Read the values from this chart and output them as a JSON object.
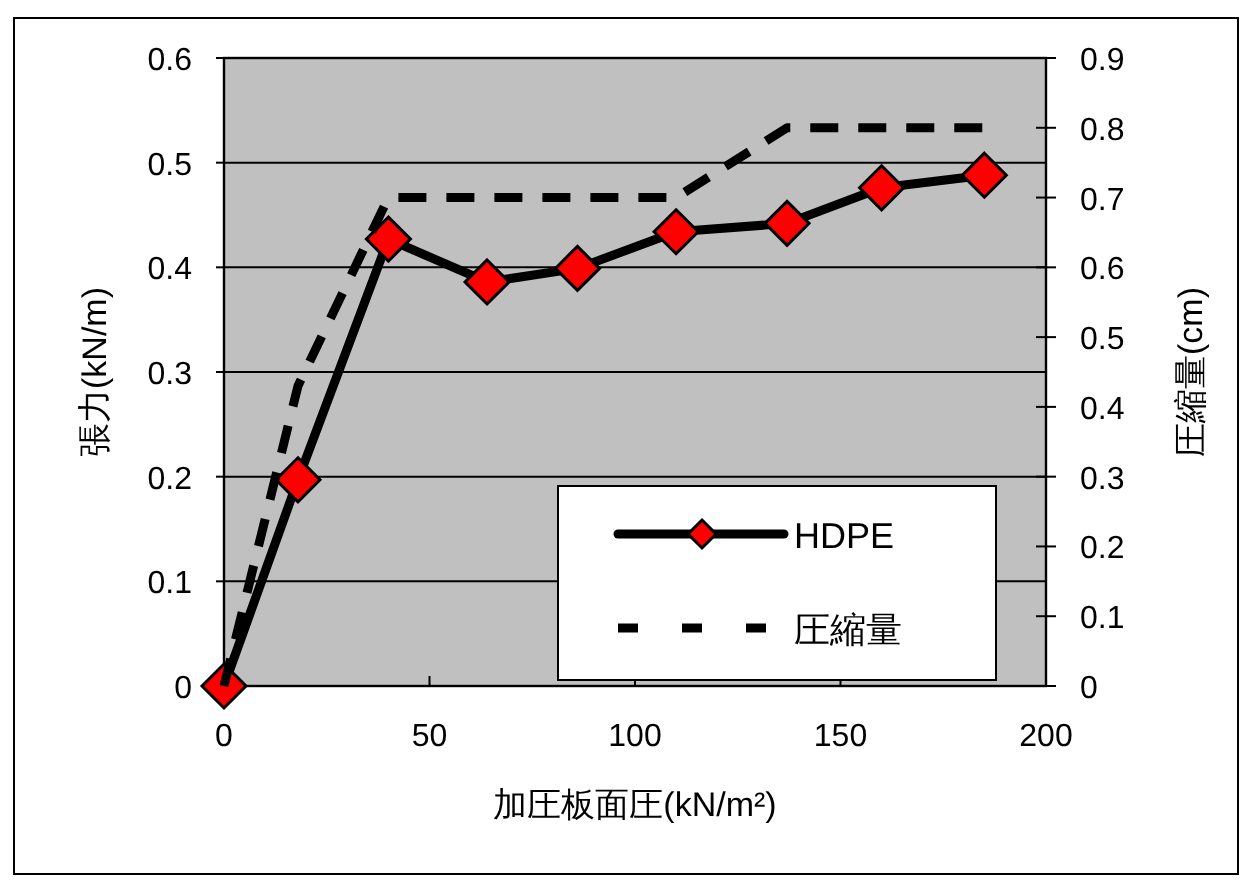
{
  "chart_data": {
    "type": "line",
    "xlabel": "加圧板面圧(kN/m²)",
    "ylabel": "張力(kN/m)",
    "y2label": "圧縮量(cm)",
    "x": [
      0,
      18,
      40,
      64,
      86,
      110,
      137,
      160,
      185
    ],
    "series": [
      {
        "name": "HDPE",
        "color": "#000000",
        "values": [
          0,
          0.197,
          0.427,
          0.386,
          0.399,
          0.434,
          0.442,
          0.476,
          0.488
        ],
        "marker": "diamond",
        "colors": [
          "#ff0000",
          "#ff0000",
          "#ff0000",
          "#ff0000",
          "#ff0000",
          "#ff0000",
          "#ff0000",
          "#ff0000",
          "#ff0000"
        ],
        "line_style": "solid"
      },
      {
        "name": "圧縮量",
        "color": "#000000",
        "axis": "y2",
        "values": [
          0,
          0.43,
          0.7,
          0.7,
          0.7,
          0.7,
          0.8,
          0.8,
          0.8
        ],
        "marker": "none",
        "line_style": "dashed"
      }
    ],
    "xlim": [
      0,
      200
    ],
    "xticks": [
      0,
      50,
      100,
      150,
      200
    ],
    "ylim": [
      0,
      0.6
    ],
    "yticks": [
      0,
      0.1,
      0.2,
      0.3,
      0.4,
      0.5,
      0.6
    ],
    "y2lim": [
      0,
      0.9
    ],
    "y2ticks": [
      0,
      0.1,
      0.2,
      0.3,
      0.4,
      0.5,
      0.6,
      0.7,
      0.8,
      0.9
    ],
    "grid": "y",
    "legend": "bottom right"
  }
}
